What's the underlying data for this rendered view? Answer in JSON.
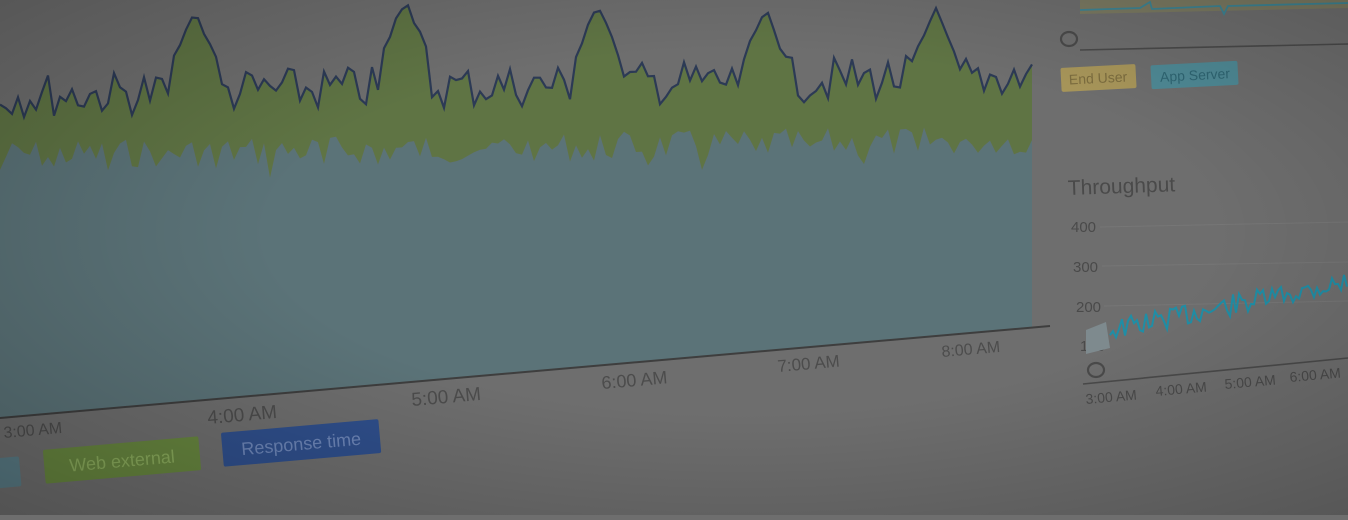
{
  "main_chart": {
    "x_ticks": [
      "3:00 AM",
      "4:00 AM",
      "5:00 AM",
      "6:00 AM",
      "7:00 AM",
      "8:00 AM"
    ],
    "legend": [
      "Web external",
      "Response time"
    ]
  },
  "top_right_chart": {
    "zero_label": "0",
    "legend": [
      "End User",
      "App Server"
    ]
  },
  "throughput_chart": {
    "title": "Throughput",
    "y_ticks": [
      "400",
      "300",
      "200",
      "100",
      "0"
    ],
    "x_ticks": [
      "3:00 AM",
      "4:00 AM",
      "5:00 AM",
      "6:00 AM"
    ]
  },
  "colors": {
    "background": "#6e6e6e",
    "app_server_fill": "#5b7378",
    "web_external_fill": "#5f7444",
    "response_line": "#2c3a55",
    "legend_web_external": "#67863f",
    "legend_response_time": "#2f4f8c",
    "legend_end_user": "#a8965a",
    "legend_app_server": "#4f8a96",
    "throughput_line": "#1f8ea6"
  }
}
